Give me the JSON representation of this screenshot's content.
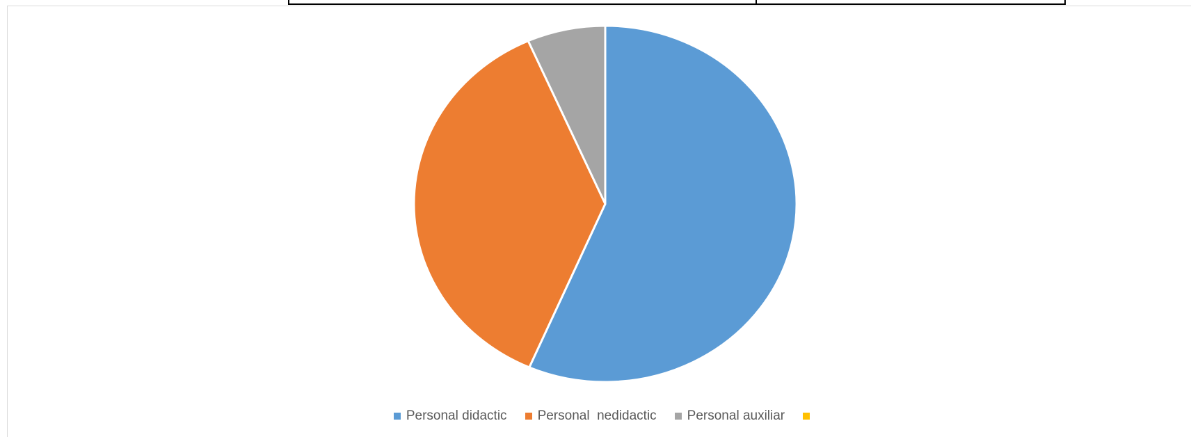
{
  "chart_data": {
    "type": "pie",
    "title": "",
    "categories": [
      "Personal didactic",
      "Personal  nedidactic",
      "Personal auxiliar",
      ""
    ],
    "values": [
      56.5,
      36.9,
      6.6,
      0
    ],
    "colors": [
      "#5B9BD5",
      "#ED7D31",
      "#A5A5A5",
      "#FFC000"
    ],
    "legend_position": "bottom",
    "start_angle_deg": 0,
    "direction": "clockwise"
  }
}
